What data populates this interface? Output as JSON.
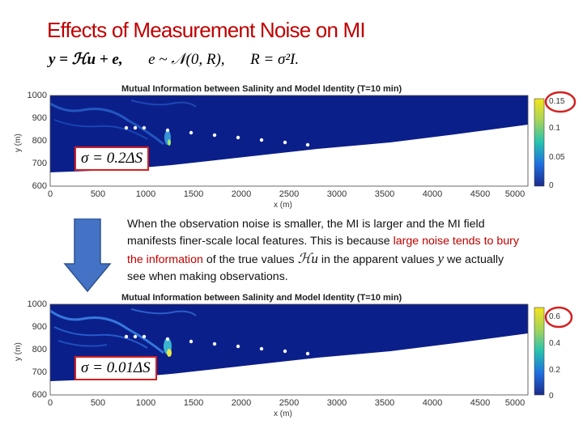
{
  "slide": {
    "title": "Effects of Measurement Noise on MI",
    "equation": {
      "part1": "y = ℋu + e,",
      "part2": "e ~ 𝒩(0, R),",
      "part3": "R = σ²I."
    },
    "explanation": {
      "text_before": "When the observation noise is smaller, the MI is larger and the MI field manifests finer-scale local features. This is because",
      "highlight": "large noise tends to bury the information",
      "text_mid": "of the true values",
      "math1": "ℋu",
      "text_mid2": "in the apparent values",
      "math2": "y",
      "text_after": "we actually see when making observations."
    },
    "arrow_color": "#4472c4"
  },
  "panels": [
    {
      "title": "Mutual Information between Salinity and Model Identity (T=10 min)",
      "sigma_label": "σ = 0.2ΔS",
      "colorbar_ticks": [
        "0.15",
        "0.1",
        "0.05",
        "0"
      ],
      "colorbar_max": 0.15,
      "highlighted_tick": "0.15"
    },
    {
      "title": "Mutual Information between Salinity and Model Identity (T=10 min)",
      "sigma_label": "σ = 0.01ΔS",
      "colorbar_ticks": [
        "0.6",
        "0.4",
        "0.2",
        "0"
      ],
      "colorbar_max": 0.6,
      "highlighted_tick": "0.6"
    }
  ],
  "axes": {
    "y_ticks": [
      "1000",
      "900",
      "800",
      "700",
      "600"
    ],
    "x_ticks": [
      "0",
      "500",
      "1000",
      "1500",
      "2000",
      "2500",
      "3000",
      "3500",
      "4000",
      "4500",
      "5000"
    ],
    "xlabel": "x (m)",
    "ylabel": "y (m)"
  },
  "colors": {
    "field": "#0b1f8a",
    "title_red": "#c00000",
    "circle_red": "#d42020"
  }
}
